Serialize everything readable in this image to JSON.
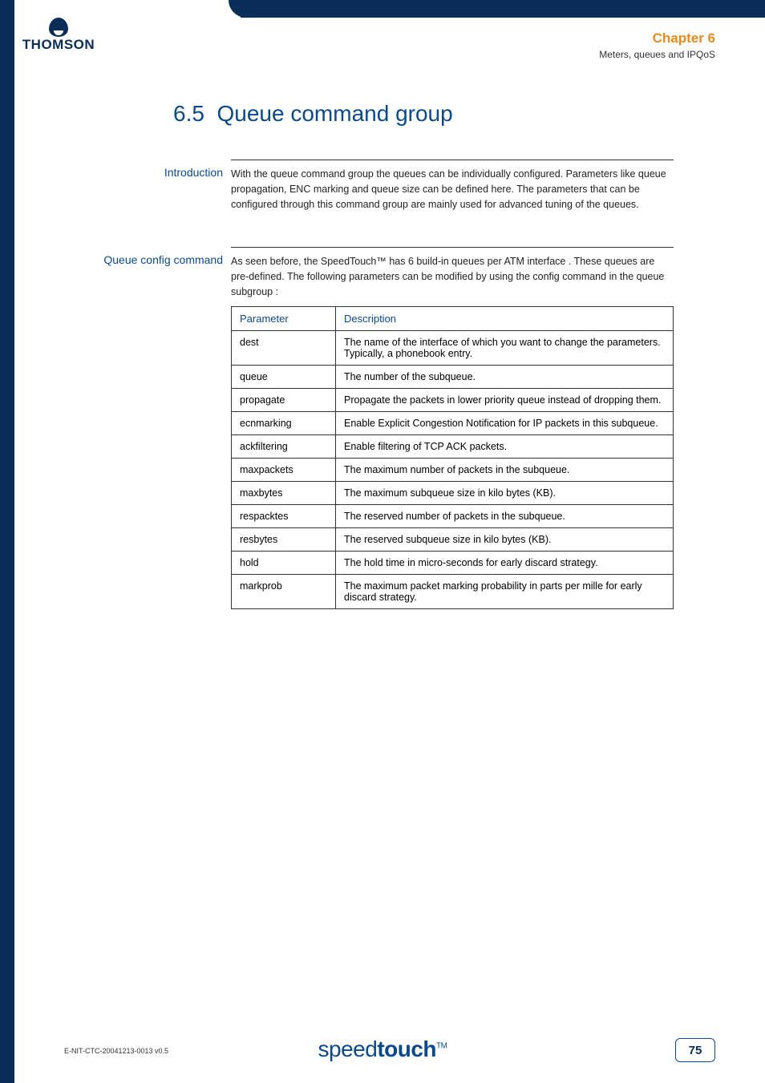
{
  "brand": {
    "name": "THOMSON"
  },
  "header": {
    "chapter": "Chapter 6",
    "subtitle": "Meters, queues and IPQoS"
  },
  "section": {
    "number": "6.5",
    "title": "Queue command group"
  },
  "intro": {
    "label": "Introduction",
    "text": "With the queue command group the queues can be individually configured. Parameters like queue propagation, ENC marking and queue size can be defined here. The parameters that can be configured through this command group are mainly used for advanced tuning of the queues."
  },
  "config": {
    "label": "Queue config command",
    "text": "As seen before, the SpeedTouch™ has 6 build-in queues per ATM interface . These queues are pre-defined. The following parameters can be modified by using the config command in the queue subgroup :"
  },
  "table": {
    "headers": {
      "param": "Parameter",
      "desc": "Description"
    },
    "rows": [
      {
        "param": "dest",
        "desc": "The name of the interface of which you want to change the parameters. Typically, a phonebook entry."
      },
      {
        "param": "queue",
        "desc": "The number of the subqueue."
      },
      {
        "param": "propagate",
        "desc": "Propagate the packets in lower priority queue instead of dropping them."
      },
      {
        "param": "ecnmarking",
        "desc": "Enable Explicit Congestion Notification for IP packets in this subqueue."
      },
      {
        "param": "ackfiltering",
        "desc": "Enable filtering of TCP ACK packets."
      },
      {
        "param": "maxpackets",
        "desc": "The maximum number of packets in the subqueue."
      },
      {
        "param": "maxbytes",
        "desc": "The maximum subqueue size in kilo bytes (KB)."
      },
      {
        "param": "respacktes",
        "desc": "The reserved number of packets in the subqueue."
      },
      {
        "param": "resbytes",
        "desc": "The reserved subqueue size in kilo bytes (KB)."
      },
      {
        "param": "hold",
        "desc": "The hold time in micro-seconds for early discard strategy."
      },
      {
        "param": "markprob",
        "desc": "The maximum packet marking probability in parts per mille for early discard strategy."
      }
    ]
  },
  "footer": {
    "docid": "E-NIT-CTC-20041213-0013 v0.5",
    "logo_light": "speed",
    "logo_bold": "touch",
    "logo_tm": "TM",
    "page": "75"
  },
  "colors": {
    "navy": "#0a2d57",
    "blue": "#0a4a8a",
    "orange": "#e38b1e"
  }
}
